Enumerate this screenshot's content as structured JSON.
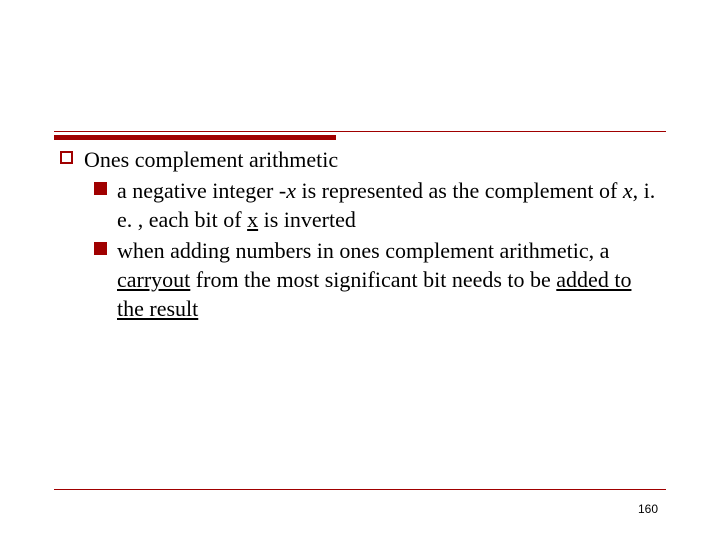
{
  "slide": {
    "rule_color": "#a00000",
    "background_color": "#ffffff",
    "font_family": "Georgia, Times New Roman, serif",
    "body_fontsize": 22,
    "page_number_fontsize": 12,
    "page_number": "160",
    "level1": {
      "text": "Ones complement arithmetic"
    },
    "level2_a": {
      "prefix": "a negative integer -",
      "italic1": "x",
      "mid1": " is represented as the complement of ",
      "italic2": "x",
      "mid2": ", i. e. , each bit of ",
      "underline1": "x",
      "suffix": " is inverted"
    },
    "level2_b": {
      "prefix": "when adding numbers in ones complement arithmetic, a ",
      "underline1": "carryout",
      "mid": " from the most significant bit needs to be ",
      "underline2": "added to the result"
    }
  }
}
